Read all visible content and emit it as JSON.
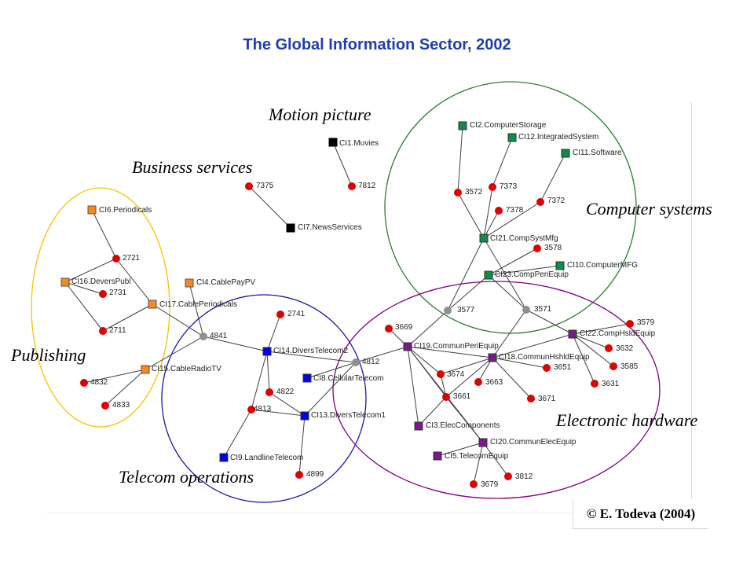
{
  "title": "The Global Information Sector, 2002",
  "copyright": "© E. Todeva (2004)",
  "colors": {
    "title": "#1f3fb0",
    "publishing": "#f5c400",
    "telecom": "#1a1aa8",
    "computer": "#2e7d32",
    "electronic": "#800080",
    "node_red": "#e00000",
    "node_gray": "#909090",
    "node_orange": "#f5891f",
    "node_black": "#000000",
    "node_blue": "#0000ee",
    "node_green": "#128a4a",
    "node_purple": "#7a1a8a"
  },
  "groups": {
    "business_services": "Business services",
    "motion_picture": "Motion picture",
    "computer_systems": "Computer systems",
    "publishing": "Publishing",
    "telecom_operations": "Telecom operations",
    "electronic_hardware": "Electronic hardware"
  },
  "nodes": {
    "cl1": "CI1.Muvies",
    "n7812": "7812",
    "n7375": "7375",
    "cl7": "CI7.NewsServices",
    "cl6": "CI6.Periodicals",
    "n2721": "2721",
    "cl16": "CI16.DeversPubl",
    "n2731": "2731",
    "cl4": "CI4.CablePayPV",
    "cl17": "CI17.CablePeriodicals",
    "n2711": "2711",
    "n4841": "4841",
    "cl15": "CI15.CableRadioTV",
    "n4832": "4832",
    "n4833": "4833",
    "n2741": "2741",
    "cl14": "CI14.DiversTelecom2",
    "n4812": "4812",
    "cl8": "CI8.CellularTelecom",
    "n4822": "4822",
    "n4813": "4813",
    "cl13": "CI13.DiversTelecom1",
    "cl9": "CI9.LandlineTelecom",
    "n4899": "4899",
    "cl2": "CI2.ComputerStorage",
    "cl12": "CI12.IntegratedSystem",
    "cl11": "CI11.Software",
    "n3572": "3572",
    "n7373": "7373",
    "n7378": "7378",
    "n7372": "7372",
    "cl21": "CI21.CompSystMfg",
    "n3578": "3578",
    "cl10": "CI10.ComputerMFG",
    "cl23": "CI23.CompPeriEquip",
    "n3577": "3577",
    "n3571": "3571",
    "n3579": "3579",
    "cl22": "CI22.CompHsldEquip",
    "n3632": "3632",
    "n3669": "3669",
    "cl19": "CI19.CommunPeriEquip",
    "cl18": "CI18.CommunHshldEquip",
    "n3651": "3651",
    "n3585": "3585",
    "n3674": "3674",
    "n3663": "3663",
    "n3631": "3631",
    "n3661": "3661",
    "n3671": "3671",
    "cl3": "CI3.ElecComponents",
    "cl20": "CI20.CommunElecEquip",
    "cl5": "CI5.TelecomEquip",
    "n3679": "3679",
    "n3812": "3812"
  }
}
